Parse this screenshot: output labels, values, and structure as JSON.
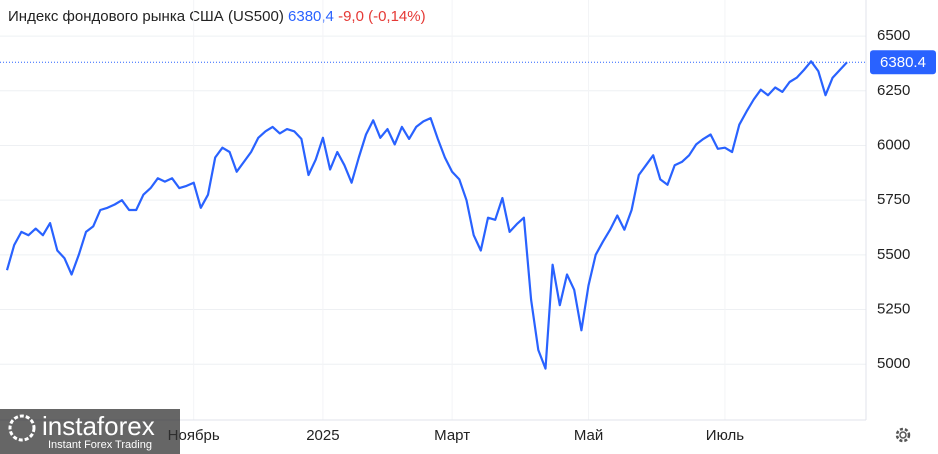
{
  "chart_data": {
    "type": "line",
    "title": "Индекс фондового рынка США (US500)",
    "price_text": "6380,4",
    "change_text": "-9,0 (-0,14%)",
    "price_line": {
      "value": 6380.4,
      "label": "6380.4"
    },
    "color": "#2962ff",
    "values": [
      5430,
      5545,
      5605,
      5590,
      5620,
      5590,
      5645,
      5520,
      5485,
      5410,
      5500,
      5605,
      5630,
      5705,
      5715,
      5730,
      5750,
      5705,
      5705,
      5775,
      5805,
      5850,
      5835,
      5850,
      5805,
      5815,
      5830,
      5715,
      5775,
      5945,
      5990,
      5970,
      5880,
      5925,
      5970,
      6035,
      6065,
      6085,
      6055,
      6075,
      6065,
      6030,
      5865,
      5935,
      6035,
      5890,
      5970,
      5910,
      5830,
      5945,
      6050,
      6115,
      6035,
      6075,
      6005,
      6085,
      6030,
      6085,
      6110,
      6125,
      6030,
      5945,
      5880,
      5845,
      5750,
      5590,
      5520,
      5670,
      5660,
      5760,
      5605,
      5640,
      5670,
      5295,
      5065,
      4980,
      5455,
      5270,
      5410,
      5340,
      5155,
      5360,
      5500,
      5560,
      5615,
      5680,
      5615,
      5705,
      5865,
      5910,
      5955,
      5845,
      5820,
      5910,
      5925,
      5955,
      6005,
      6030,
      6050,
      5985,
      5990,
      5970,
      6095,
      6155,
      6210,
      6255,
      6230,
      6265,
      6245,
      6290,
      6310,
      6345,
      6385,
      6340,
      6230,
      6310,
      6345,
      6380
    ],
    "xticks": [
      {
        "value": 26,
        "label": "Ноябрь"
      },
      {
        "value": 44,
        "label": "2025"
      },
      {
        "value": 62,
        "label": "Март"
      },
      {
        "value": 81,
        "label": "Май"
      },
      {
        "value": 100,
        "label": "Июль"
      }
    ],
    "ylim": [
      4745,
      6665
    ],
    "yticks": [
      5000,
      5250,
      5500,
      5750,
      6000,
      6250,
      6500
    ],
    "grid": true,
    "watermark": {
      "brand": "instaforex",
      "tagline": "Instant Forex Trading"
    }
  }
}
